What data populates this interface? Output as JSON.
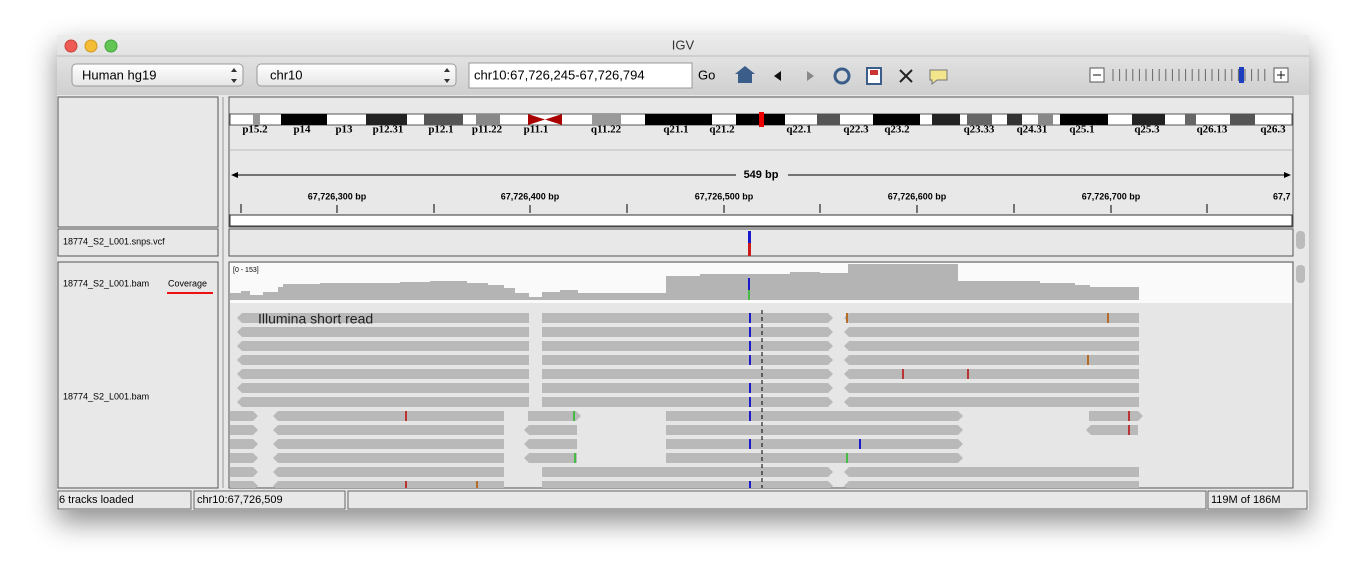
{
  "window": {
    "title": "IGV"
  },
  "toolbar": {
    "genome": "Human hg19",
    "chromosome": "chr10",
    "locus": "chr10:67,726,245-67,726,794",
    "go": "Go"
  },
  "ideogram": {
    "bands": [
      "p15.2",
      "p14",
      "p13",
      "p12.31",
      "p12.1",
      "p11.22",
      "p11.1",
      "q11.22",
      "q21.1",
      "q21.2",
      "q22.1",
      "q22.3",
      "q23.2",
      "q23.33",
      "q24.31",
      "q25.1",
      "q25.3",
      "q26.13",
      "q26.3"
    ]
  },
  "ruler": {
    "span": "549 bp",
    "labels": [
      "67,726,300 bp",
      "67,726,400 bp",
      "67,726,500 bp",
      "67,726,600 bp",
      "67,726,700 bp",
      "67,7"
    ]
  },
  "tracks": {
    "vcf": "18774_S2_L001.snps.vcf",
    "coverage_name": "18774_S2_L001.bam",
    "coverage_suffix": "Coverage",
    "coverage_range": "[0 - 153]",
    "bam": "18774_S2_L001.bam"
  },
  "annotation": "Illumina short read",
  "status": {
    "tracks": "6 tracks loaded",
    "position": "chr10:67,726,509",
    "memory": "119M of 186M"
  }
}
